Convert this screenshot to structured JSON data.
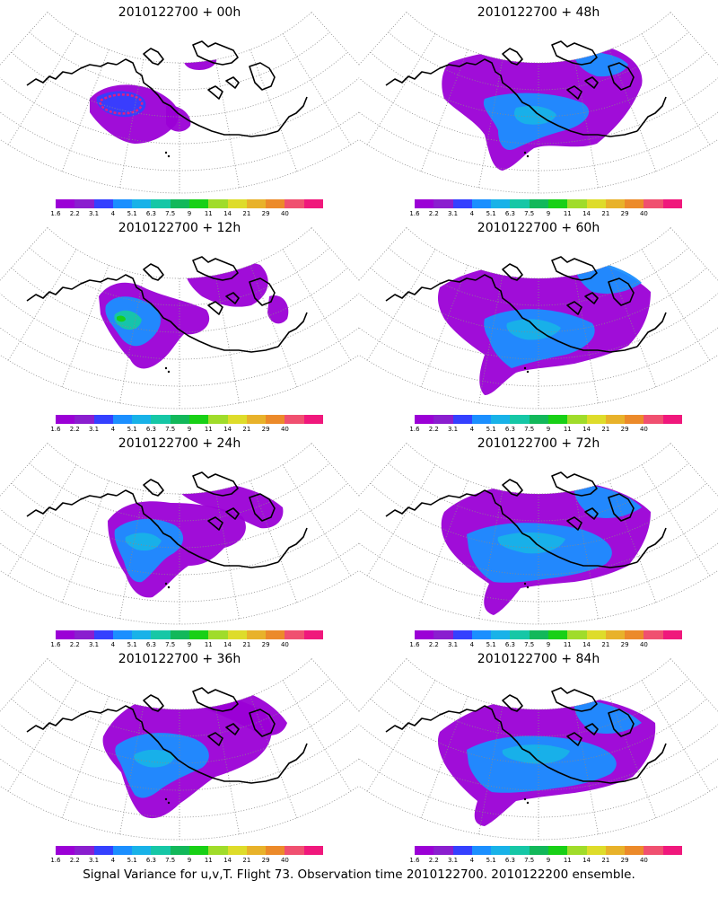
{
  "palette": [
    "#9b00d6",
    "#8a1ecf",
    "#3440ff",
    "#1b8fff",
    "#18b2e8",
    "#16c7a6",
    "#12b85a",
    "#18d016",
    "#a0dc2a",
    "#dedc2a",
    "#e8b22a",
    "#ec8a2a",
    "#f05070",
    "#f0187c"
  ],
  "colorbar_labels": [
    "1.6",
    "2.2",
    "3.1",
    "4",
    "5.1",
    "6.3",
    "7.5",
    "9",
    "11",
    "14",
    "21",
    "29",
    "40"
  ],
  "panels": [
    {
      "title": "2010122700 + 00h"
    },
    {
      "title": "2010122700 + 48h"
    },
    {
      "title": "2010122700 + 12h"
    },
    {
      "title": "2010122700 + 60h"
    },
    {
      "title": "2010122700 + 24h"
    },
    {
      "title": "2010122700 + 72h"
    },
    {
      "title": "2010122700 + 36h"
    },
    {
      "title": "2010122700 + 84h"
    }
  ],
  "caption": "Signal Variance for u,v,T. Flight 73. Observation time 2010122700. 2010122200 ensemble."
}
